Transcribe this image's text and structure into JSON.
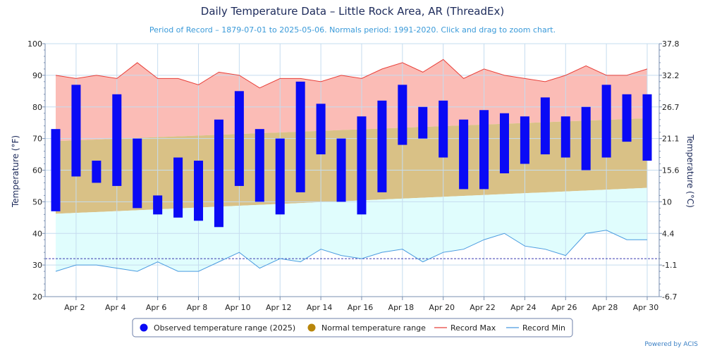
{
  "chart_data": {
    "type": "bar",
    "title": "Daily Temperature Data – Little Rock Area, AR (ThreadEx)",
    "subtitle": "Period of Record – 1879-07-01 to 2025-05-06. Normals period: 1991-2020. Click and drag to zoom chart.",
    "ylabel": "Temperature (°F)",
    "ylabel_right": "Temperature (°C)",
    "ylim": [
      20,
      100
    ],
    "yticks": [
      20,
      30,
      40,
      50,
      60,
      70,
      80,
      90,
      100
    ],
    "yticks_right": [
      "-6.7",
      "-1.1",
      "4.4",
      "10",
      "15.6",
      "21.1",
      "26.7",
      "32.2",
      "37.8"
    ],
    "x_days": [
      1,
      30
    ],
    "xticks": [
      {
        "day": 2,
        "label": "Apr 2"
      },
      {
        "day": 4,
        "label": "Apr 4"
      },
      {
        "day": 6,
        "label": "Apr 6"
      },
      {
        "day": 8,
        "label": "Apr 8"
      },
      {
        "day": 10,
        "label": "Apr 10"
      },
      {
        "day": 12,
        "label": "Apr 12"
      },
      {
        "day": 14,
        "label": "Apr 14"
      },
      {
        "day": 16,
        "label": "Apr 16"
      },
      {
        "day": 18,
        "label": "Apr 18"
      },
      {
        "day": 20,
        "label": "Apr 20"
      },
      {
        "day": 22,
        "label": "Apr 22"
      },
      {
        "day": 24,
        "label": "Apr 24"
      },
      {
        "day": 26,
        "label": "Apr 26"
      },
      {
        "day": 28,
        "label": "Apr 28"
      },
      {
        "day": 30,
        "label": "Apr 30"
      }
    ],
    "freezing_line": 32,
    "grid": true,
    "legend_position": "bottom",
    "series": [
      {
        "name": "Observed temperature range (2025)",
        "color": "#0a0af5",
        "days": [
          1,
          2,
          3,
          4,
          5,
          6,
          7,
          8,
          9,
          10,
          11,
          12,
          13,
          14,
          15,
          16,
          17,
          18,
          19,
          20,
          21,
          22,
          23,
          24,
          25,
          26,
          27,
          28,
          29,
          30
        ],
        "low": [
          47,
          58,
          56,
          55,
          48,
          46,
          45,
          44,
          42,
          55,
          50,
          46,
          53,
          65,
          50,
          46,
          53,
          68,
          70,
          64,
          54,
          54,
          59,
          62,
          65,
          64,
          60,
          64,
          69,
          63
        ],
        "high": [
          73,
          87,
          63,
          84,
          70,
          52,
          64,
          63,
          76,
          85,
          73,
          70,
          88,
          81,
          70,
          77,
          82,
          87,
          80,
          82,
          76,
          79,
          78,
          77,
          83,
          77,
          80,
          87,
          84,
          84
        ]
      },
      {
        "name": "Normal temperature range",
        "color": "#b8860b",
        "days": [
          1,
          30
        ],
        "low": [
          46.2,
          54.4
        ],
        "high": [
          69.2,
          76.4
        ]
      },
      {
        "name": "Record Max",
        "color": "#e8403a",
        "days": [
          1,
          2,
          3,
          4,
          5,
          6,
          7,
          8,
          9,
          10,
          11,
          12,
          13,
          14,
          15,
          16,
          17,
          18,
          19,
          20,
          21,
          22,
          23,
          24,
          25,
          26,
          27,
          28,
          29,
          30
        ],
        "values": [
          90,
          89,
          90,
          89,
          94,
          89,
          89,
          87,
          91,
          90,
          86,
          89,
          89,
          88,
          90,
          89,
          92,
          94,
          91,
          95,
          89,
          92,
          90,
          89,
          88,
          90,
          93,
          90,
          90,
          92
        ]
      },
      {
        "name": "Record Min",
        "color": "#4a9be0",
        "days": [
          1,
          2,
          3,
          4,
          5,
          6,
          7,
          8,
          9,
          10,
          11,
          12,
          13,
          14,
          15,
          16,
          17,
          18,
          19,
          20,
          21,
          22,
          23,
          24,
          25,
          26,
          27,
          28,
          29,
          30
        ],
        "values": [
          28,
          30,
          30,
          29,
          28,
          31,
          28,
          28,
          31,
          34,
          29,
          32,
          31,
          35,
          33,
          32,
          34,
          35,
          31,
          34,
          35,
          38,
          40,
          36,
          35,
          33,
          40,
          41,
          38,
          38
        ]
      }
    ]
  },
  "colors": {
    "record_band": "#fbbcb6",
    "normal_band": "#d9c186",
    "below_normal_band": "#e0fdfd",
    "freezing_line": "#3a3ab0",
    "grid": "#c5dcef",
    "axis": "#7a8fb0"
  },
  "legend": [
    {
      "label": "Observed temperature range (2025)",
      "icon": "circle",
      "color": "#0a0af5"
    },
    {
      "label": "Normal temperature range",
      "icon": "circle",
      "color": "#b8860b"
    },
    {
      "label": "Record Max",
      "icon": "line",
      "color": "#e8403a"
    },
    {
      "label": "Record Min",
      "icon": "line",
      "color": "#4a9be0"
    }
  ],
  "credits": "Powered by ACIS"
}
